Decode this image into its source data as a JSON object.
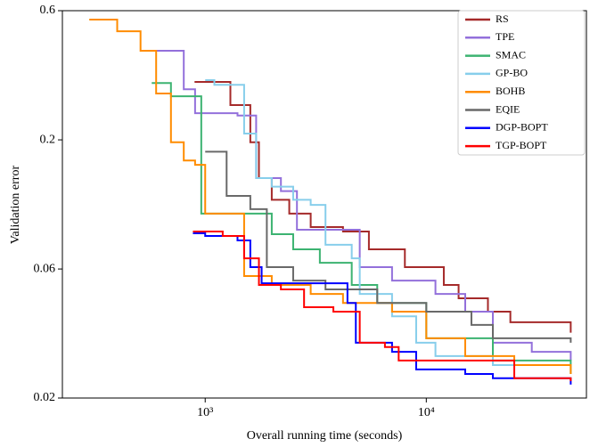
{
  "chart_data": {
    "type": "step",
    "x_label": "Overall running time (seconds)",
    "y_label": "Validation error",
    "xscale": "log",
    "yscale": "log",
    "legend": "upper right",
    "xlim": [
      226,
      53000
    ],
    "xticks": [
      {
        "value": 1000,
        "label": "10³"
      },
      {
        "value": 10000,
        "label": "10⁴"
      }
    ],
    "ylim": [
      0.02,
      0.6
    ],
    "yticks": [
      0.02,
      {
        "value": 0.0621,
        "label": "0.06"
      },
      {
        "value": 0.193,
        "label": "0.2"
      },
      0.6
    ],
    "series": [
      {
        "name": "RS",
        "color": "#a52a2a",
        "x": [
          895,
          1300,
          1600,
          1750,
          2000,
          2400,
          3000,
          4200,
          5500,
          8000,
          12000,
          14000,
          19000,
          24000,
          45000
        ],
        "values": [
          0.321,
          0.262,
          0.189,
          0.138,
          0.114,
          0.101,
          0.0897,
          0.0863,
          0.0738,
          0.0631,
          0.054,
          0.048,
          0.0427,
          0.0389,
          0.0355
        ]
      },
      {
        "name": "TPE",
        "color": "#9370db",
        "x": [
          508,
          800,
          900,
          1400,
          1700,
          2200,
          2600,
          4500,
          5000,
          7000,
          11000,
          15000,
          20000,
          30000,
          45000
        ],
        "values": [
          0.422,
          0.301,
          0.244,
          0.239,
          0.138,
          0.123,
          0.0877,
          0.0877,
          0.0631,
          0.0561,
          0.0499,
          0.0427,
          0.0325,
          0.03,
          0.0278
        ]
      },
      {
        "name": "SMAC",
        "color": "#3cb371",
        "x": [
          573,
          700,
          900,
          960,
          1350,
          2000,
          2500,
          3300,
          4600,
          6000,
          10000,
          15000,
          20000,
          45000
        ],
        "values": [
          0.318,
          0.283,
          0.283,
          0.101,
          0.101,
          0.0843,
          0.0738,
          0.0656,
          0.054,
          0.0461,
          0.0338,
          0.0338,
          0.0278,
          0.0247
        ]
      },
      {
        "name": "GP-BO",
        "color": "#87ceeb",
        "x": [
          1000,
          1100,
          1500,
          1700,
          2000,
          2500,
          3000,
          3500,
          4600,
          5000,
          7000,
          9000,
          11000,
          20000,
          45000
        ],
        "values": [
          0.326,
          0.313,
          0.204,
          0.138,
          0.128,
          0.114,
          0.109,
          0.0768,
          0.0682,
          0.0499,
          0.041,
          0.0325,
          0.0289,
          0.0267,
          0.0267
        ]
      },
      {
        "name": "BOHB",
        "color": "#ff8c00",
        "x": [
          299,
          400,
          510,
          600,
          700,
          800,
          900,
          1000,
          1500,
          2000,
          3000,
          4200,
          7000,
          10000,
          15000,
          25000,
          45000
        ],
        "values": [
          0.555,
          0.501,
          0.422,
          0.29,
          0.189,
          0.161,
          0.155,
          0.101,
          0.0584,
          0.054,
          0.0499,
          0.0461,
          0.0427,
          0.0338,
          0.0289,
          0.0267,
          0.0247
        ]
      },
      {
        "name": "EQIE",
        "color": "#696969",
        "x": [
          1000,
          1100,
          1250,
          1600,
          1900,
          2500,
          3500,
          4500,
          6000,
          10000,
          16000,
          20000,
          45000
        ],
        "values": [
          0.174,
          0.174,
          0.118,
          0.105,
          0.0631,
          0.0561,
          0.0519,
          0.0519,
          0.0461,
          0.0427,
          0.038,
          0.0338,
          0.0325
        ]
      },
      {
        "name": "DGP-BOPT",
        "color": "#0000ff",
        "x": [
          880,
          1000,
          1400,
          1600,
          1800,
          3000,
          4400,
          4800,
          7000,
          9000,
          15000,
          20000,
          45000
        ],
        "values": [
          0.085,
          0.083,
          0.0798,
          0.0631,
          0.0548,
          0.0548,
          0.0461,
          0.0325,
          0.03,
          0.0257,
          0.0247,
          0.0238,
          0.0225
        ]
      },
      {
        "name": "TGP-BOPT",
        "color": "#ff0000",
        "x": [
          880,
          1200,
          1500,
          1750,
          2200,
          2800,
          3800,
          5000,
          6500,
          7500,
          15000,
          25000,
          45000
        ],
        "values": [
          0.0863,
          0.083,
          0.0682,
          0.054,
          0.0519,
          0.0444,
          0.0427,
          0.0325,
          0.0313,
          0.0278,
          0.0278,
          0.0238,
          0.0232
        ]
      }
    ]
  }
}
